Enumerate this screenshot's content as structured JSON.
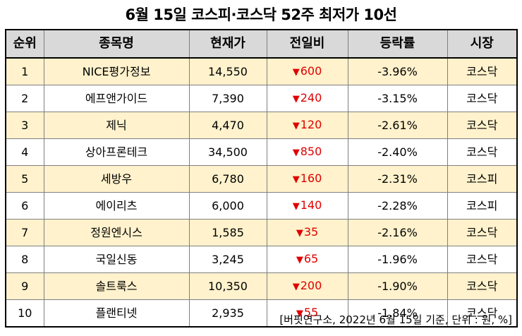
{
  "title": "6월 15일 코스피·코스닥 52주 최저가 10선",
  "headers": [
    "순위",
    "종목명",
    "현재가",
    "전일비",
    "등락률",
    "시장"
  ],
  "rows": [
    {
      "rank": "1",
      "name": "NICE평가정보",
      "price": "14,550",
      "change": "600",
      "rate": "-3.96%",
      "market": "코스닥"
    },
    {
      "rank": "2",
      "name": "에프앤가이드",
      "price": "7,390",
      "change": "240",
      "rate": "-3.15%",
      "market": "코스닥"
    },
    {
      "rank": "3",
      "name": "제닉",
      "price": "4,470",
      "change": "120",
      "rate": "-2.61%",
      "market": "코스닥"
    },
    {
      "rank": "4",
      "name": "상아프론테크",
      "price": "34,500",
      "change": "850",
      "rate": "-2.40%",
      "market": "코스닥"
    },
    {
      "rank": "5",
      "name": "세방우",
      "price": "6,780",
      "change": "160",
      "rate": "-2.31%",
      "market": "코스피"
    },
    {
      "rank": "6",
      "name": "에이리츠",
      "price": "6,000",
      "change": "140",
      "rate": "-2.28%",
      "market": "코스피"
    },
    {
      "rank": "7",
      "name": "정원엔시스",
      "price": "1,585",
      "change": "35",
      "rate": "-2.16%",
      "market": "코스닥"
    },
    {
      "rank": "8",
      "name": "국일신동",
      "price": "3,245",
      "change": "65",
      "rate": "-1.96%",
      "market": "코스닥"
    },
    {
      "rank": "9",
      "name": "솔트룩스",
      "price": "10,350",
      "change": "200",
      "rate": "-1.90%",
      "market": "코스닥"
    },
    {
      "rank": "10",
      "name": "플랜티넷",
      "price": "2,935",
      "change": "55",
      "rate": "-1.84%",
      "market": "코스닥"
    }
  ],
  "down_arrow": "▼",
  "footer": "[버핏연구소, 2022년 6월 15일 기준, 단위 : 원, %]",
  "colors": {
    "odd_row": "#fff2cc",
    "header_bg": "#d9d9d9",
    "down": "#e00000"
  }
}
